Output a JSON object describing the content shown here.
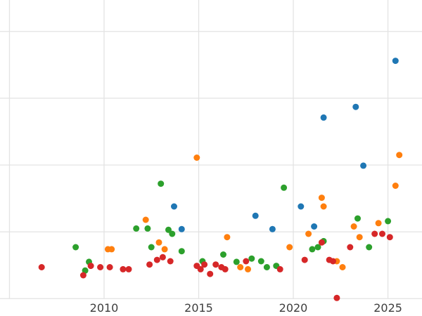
{
  "figure": {
    "title": "",
    "background_color": "#ffffff",
    "grid_color": "#e3e3e3",
    "tick_label_color": "#3d3d3d"
  },
  "chart_data": {
    "type": "scatter",
    "title": "",
    "xlabel": "",
    "ylabel": "",
    "legend": "none",
    "grid": true,
    "axes": {
      "x_range": [
        2004.5,
        2026.8
      ],
      "y_range": [
        -2.6,
        44.7
      ],
      "x_tick_years": [
        2010,
        2015,
        2020,
        2025
      ],
      "x_tick_labels": [
        "2010",
        "2015",
        "2020",
        "2025"
      ],
      "grid_x_years": [
        2005,
        2010,
        2015,
        2020,
        2025
      ],
      "grid_y_values": [
        0,
        10,
        20,
        30,
        40
      ]
    },
    "marker": {
      "radius": 4.5
    },
    "series": [
      {
        "name": "blue",
        "color": "#1f77b4",
        "points": [
          [
            2013.7,
            13.8
          ],
          [
            2014.1,
            10.4
          ],
          [
            2018.0,
            12.4
          ],
          [
            2018.9,
            10.4
          ],
          [
            2020.4,
            13.8
          ],
          [
            2021.1,
            10.8
          ],
          [
            2021.6,
            27.1
          ],
          [
            2023.3,
            28.7
          ],
          [
            2023.7,
            19.9
          ],
          [
            2025.4,
            35.6
          ]
        ]
      },
      {
        "name": "orange",
        "color": "#ff7f0e",
        "points": [
          [
            2010.2,
            7.4
          ],
          [
            2010.4,
            7.4
          ],
          [
            2012.2,
            11.8
          ],
          [
            2012.9,
            8.4
          ],
          [
            2013.2,
            7.4
          ],
          [
            2014.9,
            21.1
          ],
          [
            2016.5,
            9.2
          ],
          [
            2017.2,
            4.7
          ],
          [
            2017.6,
            4.4
          ],
          [
            2019.8,
            7.7
          ],
          [
            2020.8,
            9.7
          ],
          [
            2021.5,
            15.1
          ],
          [
            2021.6,
            13.8
          ],
          [
            2022.3,
            5.6
          ],
          [
            2022.6,
            4.7
          ],
          [
            2023.2,
            10.8
          ],
          [
            2023.5,
            9.2
          ],
          [
            2024.5,
            11.3
          ],
          [
            2025.4,
            16.9
          ],
          [
            2025.6,
            21.5
          ]
        ]
      },
      {
        "name": "green",
        "color": "#2ca02c",
        "points": [
          [
            2008.5,
            7.7
          ],
          [
            2009.0,
            4.2
          ],
          [
            2009.2,
            5.5
          ],
          [
            2011.7,
            10.5
          ],
          [
            2012.3,
            10.5
          ],
          [
            2012.5,
            7.7
          ],
          [
            2013.0,
            17.2
          ],
          [
            2013.4,
            10.3
          ],
          [
            2013.6,
            9.7
          ],
          [
            2014.1,
            7.1
          ],
          [
            2015.2,
            5.6
          ],
          [
            2016.3,
            6.6
          ],
          [
            2017.0,
            5.5
          ],
          [
            2017.8,
            6.0
          ],
          [
            2018.3,
            5.6
          ],
          [
            2018.6,
            4.7
          ],
          [
            2019.1,
            4.9
          ],
          [
            2019.5,
            16.6
          ],
          [
            2021.0,
            7.4
          ],
          [
            2021.3,
            7.7
          ],
          [
            2021.6,
            8.6
          ],
          [
            2023.4,
            12.0
          ],
          [
            2024.0,
            7.7
          ],
          [
            2025.0,
            11.6
          ]
        ]
      },
      {
        "name": "red",
        "color": "#d62728",
        "points": [
          [
            2006.7,
            4.7
          ],
          [
            2008.9,
            3.5
          ],
          [
            2009.3,
            4.9
          ],
          [
            2009.8,
            4.7
          ],
          [
            2010.3,
            4.7
          ],
          [
            2011.0,
            4.4
          ],
          [
            2011.3,
            4.4
          ],
          [
            2012.4,
            5.1
          ],
          [
            2012.8,
            5.8
          ],
          [
            2013.1,
            6.2
          ],
          [
            2013.5,
            5.6
          ],
          [
            2014.9,
            4.9
          ],
          [
            2015.1,
            4.4
          ],
          [
            2015.3,
            5.1
          ],
          [
            2015.6,
            3.7
          ],
          [
            2015.9,
            5.1
          ],
          [
            2016.2,
            4.7
          ],
          [
            2016.4,
            4.4
          ],
          [
            2017.5,
            5.6
          ],
          [
            2019.3,
            4.4
          ],
          [
            2020.6,
            5.8
          ],
          [
            2021.5,
            8.4
          ],
          [
            2021.9,
            5.8
          ],
          [
            2022.1,
            5.6
          ],
          [
            2022.3,
            0.1
          ],
          [
            2023.0,
            7.7
          ],
          [
            2024.3,
            9.7
          ],
          [
            2024.7,
            9.7
          ],
          [
            2025.1,
            9.2
          ]
        ]
      }
    ]
  }
}
